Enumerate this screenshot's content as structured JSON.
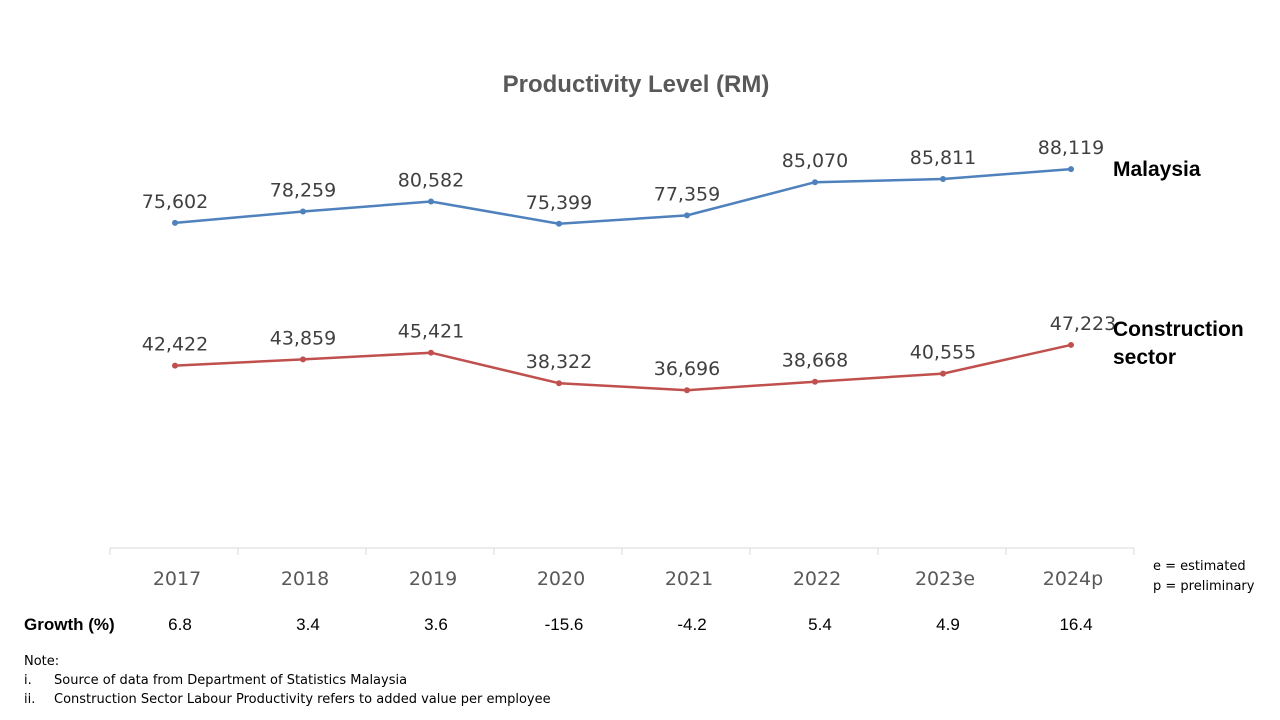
{
  "chart_data": {
    "type": "line",
    "title": "Productivity Level (RM)",
    "xlabel": "",
    "ylabel": "",
    "categories": [
      "2017",
      "2018",
      "2019",
      "2020",
      "2021",
      "2022",
      "2023e",
      "2024p"
    ],
    "series": [
      {
        "name": "Malaysia",
        "color": "#4f81bd",
        "values": [
          75602,
          78259,
          80582,
          75399,
          77359,
          85070,
          85811,
          88119
        ],
        "labels": [
          "75,602",
          "78,259",
          "80,582",
          "75,399",
          "77,359",
          "85,070",
          "85,811",
          "88,119"
        ]
      },
      {
        "name": "Construction sector",
        "name_lines": [
          "Construction",
          "sector"
        ],
        "color": "#c0504d",
        "values": [
          42422,
          43859,
          45421,
          38322,
          36696,
          38668,
          40555,
          47223
        ],
        "labels": [
          "42,422",
          "43,859",
          "45,421",
          "38,322",
          "36,696",
          "38,668",
          "40,555",
          "47,223"
        ]
      }
    ],
    "ylim": [
      0,
      100000
    ],
    "grid": false,
    "legend": "right (series names at line ends)"
  },
  "growth": {
    "label": "Growth (%)",
    "values": [
      "6.8",
      "3.4",
      "3.6",
      "-15.6",
      "-4.2",
      "5.4",
      "4.9",
      "16.4"
    ]
  },
  "legend_notes": [
    "e = estimated",
    "p = preliminary"
  ],
  "notes": {
    "heading": "Note:",
    "items": [
      {
        "num": "i.",
        "text": "Source of data from Department of Statistics Malaysia"
      },
      {
        "num": "ii.",
        "text": "Construction Sector Labour Productivity refers to added value per employee"
      }
    ]
  }
}
